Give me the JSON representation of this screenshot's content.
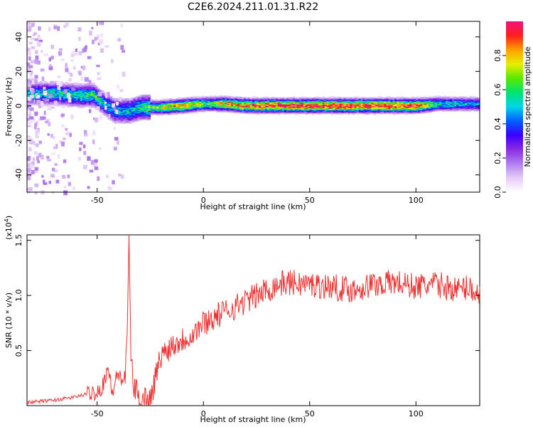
{
  "title": "C2E6.2024.211.01.31.R22",
  "colors": {
    "snr_line": "#ee3030",
    "colormap": [
      "#ffffff",
      "#e6ccf7",
      "#b07ef0",
      "#8a2be2",
      "#3a00ff",
      "#0060ff",
      "#00d6e8",
      "#00e36f",
      "#5ae800",
      "#e8ee00",
      "#ffa000",
      "#ff1e1e",
      "#f01478"
    ]
  },
  "chart_data": [
    {
      "type": "heatmap",
      "panel": "spectrogram",
      "xlabel": "Height of straight line (km)",
      "ylabel": "Frequency (Hz)",
      "xlim": [
        -83,
        130
      ],
      "ylim": [
        -50,
        49
      ],
      "xticks": [
        -50,
        0,
        50,
        100
      ],
      "xtick_labels": [
        "-50",
        "0",
        "50",
        "100"
      ],
      "yticks": [
        40,
        20,
        0,
        -20,
        -40
      ],
      "ytick_labels": [
        "40",
        "20",
        "0",
        "-20",
        "-40"
      ],
      "colorbar": {
        "label": "Normalized spectral amplitude",
        "range": [
          0,
          1
        ],
        "ticks": [
          0.0,
          0.2,
          0.4,
          0.6,
          0.8
        ],
        "tick_labels": [
          "0.0",
          "0.2",
          "0.4",
          "0.6",
          "0.8"
        ]
      },
      "ridge": {
        "x": [
          -83,
          -70,
          -60,
          -52,
          -47,
          -42,
          -35,
          -30,
          -20,
          -10,
          0,
          10,
          20,
          50,
          80,
          100,
          110,
          130
        ],
        "center_hz": [
          7,
          7,
          6,
          6,
          1,
          -3,
          -3,
          -1,
          -1,
          0,
          1,
          1,
          0,
          0,
          0,
          0,
          1,
          1
        ],
        "peak_amplitude": [
          0.5,
          0.55,
          0.55,
          0.6,
          0.5,
          0.45,
          0.5,
          0.55,
          0.7,
          0.85,
          0.6,
          0.8,
          0.9,
          0.95,
          0.95,
          0.9,
          0.55,
          0.45
        ]
      }
    },
    {
      "type": "line",
      "panel": "snr",
      "xlabel": "Height of straight line (km)",
      "ylabel": "SNR (10 * v/v)",
      "y_multiplier": "(x10",
      "y_multiplier_exp": "4",
      "y_multiplier_close": ")",
      "xlim": [
        -83,
        130
      ],
      "ylim": [
        0,
        1.55
      ],
      "xticks": [
        -50,
        0,
        50,
        100
      ],
      "xtick_labels": [
        "-50",
        "0",
        "50",
        "100"
      ],
      "yticks": [
        0.5,
        1.0,
        1.5
      ],
      "ytick_labels": [
        "0.5",
        "1.0",
        "1.5"
      ],
      "series": [
        {
          "x": [
            -83,
            -70,
            -60,
            -52,
            -48,
            -45,
            -43,
            -40,
            -37,
            -36,
            -35,
            -34,
            -33,
            -31,
            -29,
            -27,
            -25,
            -22,
            -20,
            -15,
            -10,
            -5,
            0,
            5,
            10,
            15,
            20,
            25,
            30,
            35,
            40,
            50,
            60,
            70,
            80,
            90,
            95,
            100,
            110,
            120,
            125,
            130
          ],
          "values": [
            0.03,
            0.05,
            0.08,
            0.12,
            0.15,
            0.35,
            0.12,
            0.3,
            0.2,
            0.55,
            1.55,
            0.4,
            0.2,
            0.1,
            0.05,
            0.08,
            0.05,
            0.3,
            0.45,
            0.55,
            0.6,
            0.65,
            0.75,
            0.8,
            0.85,
            0.9,
            0.95,
            1.0,
            1.05,
            1.1,
            1.12,
            1.1,
            1.08,
            1.05,
            1.1,
            1.12,
            1.1,
            1.08,
            1.1,
            1.05,
            1.08,
            1.0
          ]
        }
      ]
    }
  ]
}
